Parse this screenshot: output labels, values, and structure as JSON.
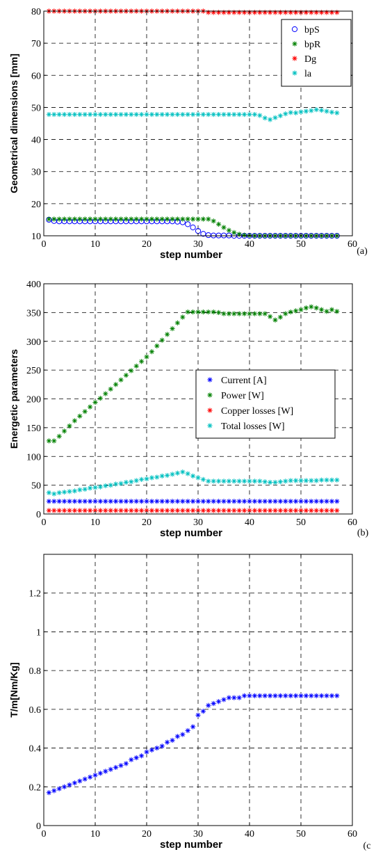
{
  "chart_data": [
    {
      "type": "scatter",
      "panel_label": "(a)",
      "xlabel": "step number",
      "ylabel": "Geometrical dimensions [mm]",
      "xlim": [
        0,
        60
      ],
      "ylim": [
        10,
        80
      ],
      "xticks": [
        0,
        10,
        20,
        30,
        40,
        50,
        60
      ],
      "yticks": [
        10,
        20,
        30,
        40,
        50,
        60,
        70,
        80
      ],
      "grid": true,
      "legend_position": "top-right",
      "series": [
        {
          "name": "bpS",
          "marker": "circle",
          "color": "#0000ff",
          "x": [
            1,
            2,
            3,
            4,
            5,
            6,
            7,
            8,
            9,
            10,
            11,
            12,
            13,
            14,
            15,
            16,
            17,
            18,
            19,
            20,
            21,
            22,
            23,
            24,
            25,
            26,
            27,
            28,
            29,
            30,
            31,
            32,
            33,
            34,
            35,
            36,
            37,
            38,
            39,
            40,
            41,
            42,
            43,
            44,
            45,
            46,
            47,
            48,
            49,
            50,
            51,
            52,
            53,
            54,
            55,
            56,
            57
          ],
          "y": [
            15,
            14.6,
            14.5,
            14.5,
            14.5,
            14.5,
            14.5,
            14.5,
            14.5,
            14.5,
            14.5,
            14.5,
            14.5,
            14.5,
            14.5,
            14.5,
            14.5,
            14.5,
            14.5,
            14.5,
            14.5,
            14.5,
            14.5,
            14.5,
            14.5,
            14.4,
            14.2,
            13.6,
            12.6,
            11.5,
            10.6,
            10.2,
            10.1,
            10.1,
            10.1,
            10.1,
            10,
            10,
            10,
            10,
            10,
            10,
            10,
            10,
            10,
            10,
            10,
            10,
            10,
            10,
            10,
            10,
            10,
            10,
            10,
            10,
            10
          ]
        },
        {
          "name": "bpR",
          "marker": "asterisk",
          "color": "#008000",
          "x": [
            1,
            2,
            3,
            4,
            5,
            6,
            7,
            8,
            9,
            10,
            11,
            12,
            13,
            14,
            15,
            16,
            17,
            18,
            19,
            20,
            21,
            22,
            23,
            24,
            25,
            26,
            27,
            28,
            29,
            30,
            31,
            32,
            33,
            34,
            35,
            36,
            37,
            38,
            39,
            40,
            41,
            42,
            43,
            44,
            45,
            46,
            47,
            48,
            49,
            50,
            51,
            52,
            53,
            54,
            55,
            56,
            57
          ],
          "y": [
            15.2,
            15.2,
            15.2,
            15.2,
            15.2,
            15.2,
            15.2,
            15.2,
            15.2,
            15.2,
            15.2,
            15.2,
            15.2,
            15.2,
            15.2,
            15.2,
            15.2,
            15.2,
            15.2,
            15.2,
            15.2,
            15.2,
            15.2,
            15.2,
            15.2,
            15.2,
            15.2,
            15.2,
            15.2,
            15.2,
            15.2,
            15.2,
            14.6,
            13.6,
            12.6,
            11.7,
            11,
            10.5,
            10.2,
            10.1,
            10,
            10,
            10,
            10,
            10,
            10,
            10,
            10,
            10,
            10,
            10,
            10,
            10,
            10,
            10,
            10,
            10
          ]
        },
        {
          "name": "Dg",
          "marker": "asterisk",
          "color": "#ff0000",
          "x": [
            1,
            2,
            3,
            4,
            5,
            6,
            7,
            8,
            9,
            10,
            11,
            12,
            13,
            14,
            15,
            16,
            17,
            18,
            19,
            20,
            21,
            22,
            23,
            24,
            25,
            26,
            27,
            28,
            29,
            30,
            31,
            32,
            33,
            34,
            35,
            36,
            37,
            38,
            39,
            40,
            41,
            42,
            43,
            44,
            45,
            46,
            47,
            48,
            49,
            50,
            51,
            52,
            53,
            54,
            55,
            56,
            57
          ],
          "y": [
            80,
            80,
            80,
            80,
            80,
            80,
            80,
            80,
            80,
            80,
            80,
            80,
            80,
            80,
            80,
            80,
            80,
            80,
            80,
            80,
            80,
            80,
            80,
            80,
            80,
            80,
            80,
            80,
            80,
            80,
            80,
            79.6,
            79.6,
            79.6,
            79.6,
            79.6,
            79.6,
            79.6,
            79.6,
            79.6,
            79.6,
            79.6,
            79.6,
            79.6,
            79.6,
            79.6,
            79.6,
            79.6,
            79.6,
            79.6,
            79.6,
            79.6,
            79.6,
            79.6,
            79.6,
            79.6,
            79.6
          ]
        },
        {
          "name": "la",
          "marker": "asterisk",
          "color": "#00c0c0",
          "x": [
            1,
            2,
            3,
            4,
            5,
            6,
            7,
            8,
            9,
            10,
            11,
            12,
            13,
            14,
            15,
            16,
            17,
            18,
            19,
            20,
            21,
            22,
            23,
            24,
            25,
            26,
            27,
            28,
            29,
            30,
            31,
            32,
            33,
            34,
            35,
            36,
            37,
            38,
            39,
            40,
            41,
            42,
            43,
            44,
            45,
            46,
            47,
            48,
            49,
            50,
            51,
            52,
            53,
            54,
            55,
            56,
            57
          ],
          "y": [
            47.8,
            47.8,
            47.8,
            47.8,
            47.8,
            47.8,
            47.8,
            47.8,
            47.8,
            47.8,
            47.8,
            47.8,
            47.8,
            47.8,
            47.8,
            47.8,
            47.8,
            47.8,
            47.8,
            47.8,
            47.8,
            47.8,
            47.8,
            47.8,
            47.8,
            47.8,
            47.8,
            47.8,
            47.8,
            47.8,
            47.8,
            47.8,
            47.8,
            47.8,
            47.8,
            47.8,
            47.8,
            47.8,
            47.8,
            47.8,
            47.8,
            47.5,
            46.7,
            46.2,
            46.8,
            47.4,
            48,
            48.4,
            48.3,
            48.6,
            48.8,
            49,
            49.3,
            49.1,
            48.8,
            48.5,
            48.3
          ]
        }
      ]
    },
    {
      "type": "scatter",
      "panel_label": "(b)",
      "xlabel": "step number",
      "ylabel": "Energetic parameters",
      "xlim": [
        0,
        60
      ],
      "ylim": [
        0,
        400
      ],
      "xticks": [
        0,
        10,
        20,
        30,
        40,
        50,
        60
      ],
      "yticks": [
        0,
        50,
        100,
        150,
        200,
        250,
        300,
        350,
        400
      ],
      "grid": true,
      "legend_position": "center-right",
      "series": [
        {
          "name": "Current [A]",
          "marker": "asterisk",
          "color": "#0000ff",
          "x": [
            1,
            2,
            3,
            4,
            5,
            6,
            7,
            8,
            9,
            10,
            11,
            12,
            13,
            14,
            15,
            16,
            17,
            18,
            19,
            20,
            21,
            22,
            23,
            24,
            25,
            26,
            27,
            28,
            29,
            30,
            31,
            32,
            33,
            34,
            35,
            36,
            37,
            38,
            39,
            40,
            41,
            42,
            43,
            44,
            45,
            46,
            47,
            48,
            49,
            50,
            51,
            52,
            53,
            54,
            55,
            56,
            57
          ],
          "y": [
            22,
            22,
            22,
            22,
            22,
            22,
            22,
            22,
            22,
            22,
            22,
            22,
            22,
            22,
            22,
            22,
            22,
            22,
            22,
            22,
            22,
            22,
            22,
            22,
            22,
            22,
            22,
            22,
            22,
            22,
            22,
            22,
            22,
            22,
            22,
            22,
            22,
            22,
            22,
            22,
            22,
            22,
            22,
            22,
            22,
            22,
            22,
            22,
            22,
            22,
            22,
            22,
            22,
            22,
            22,
            22,
            22
          ]
        },
        {
          "name": "Power [W]",
          "marker": "asterisk",
          "color": "#008000",
          "x": [
            1,
            2,
            3,
            4,
            5,
            6,
            7,
            8,
            9,
            10,
            11,
            12,
            13,
            14,
            15,
            16,
            17,
            18,
            19,
            20,
            21,
            22,
            23,
            24,
            25,
            26,
            27,
            28,
            29,
            30,
            31,
            32,
            33,
            34,
            35,
            36,
            37,
            38,
            39,
            40,
            41,
            42,
            43,
            44,
            45,
            46,
            47,
            48,
            49,
            50,
            51,
            52,
            53,
            54,
            55,
            56,
            57
          ],
          "y": [
            127,
            127,
            135,
            144,
            153,
            162,
            170,
            178,
            186,
            194,
            201,
            209,
            217,
            225,
            233,
            241,
            249,
            257,
            265,
            273,
            282,
            292,
            302,
            312,
            322,
            332,
            342,
            351,
            351,
            351,
            351,
            351,
            351,
            350,
            348,
            348,
            348,
            348,
            348,
            348,
            348,
            348,
            348,
            343,
            337,
            342,
            348,
            351,
            353,
            355,
            358,
            360,
            358,
            355,
            352,
            355,
            352
          ]
        },
        {
          "name": "Copper losses [W]",
          "marker": "asterisk",
          "color": "#ff0000",
          "x": [
            1,
            2,
            3,
            4,
            5,
            6,
            7,
            8,
            9,
            10,
            11,
            12,
            13,
            14,
            15,
            16,
            17,
            18,
            19,
            20,
            21,
            22,
            23,
            24,
            25,
            26,
            27,
            28,
            29,
            30,
            31,
            32,
            33,
            34,
            35,
            36,
            37,
            38,
            39,
            40,
            41,
            42,
            43,
            44,
            45,
            46,
            47,
            48,
            49,
            50,
            51,
            52,
            53,
            54,
            55,
            56,
            57
          ],
          "y": [
            6,
            6,
            6,
            6,
            6,
            6,
            6,
            6,
            6,
            6,
            6,
            6,
            6,
            6,
            6,
            6,
            6,
            6,
            6,
            6,
            6,
            6,
            6,
            6,
            6,
            6,
            6,
            6,
            6,
            6,
            6,
            6,
            6,
            6,
            6,
            6,
            6,
            6,
            6,
            6,
            6,
            6,
            6,
            6,
            6,
            6,
            6,
            6,
            6,
            6,
            6,
            6,
            6,
            6,
            6,
            6,
            6
          ]
        },
        {
          "name": "Total losses [W]",
          "marker": "asterisk",
          "color": "#00c0c0",
          "x": [
            1,
            2,
            3,
            4,
            5,
            6,
            7,
            8,
            9,
            10,
            11,
            12,
            13,
            14,
            15,
            16,
            17,
            18,
            19,
            20,
            21,
            22,
            23,
            24,
            25,
            26,
            27,
            28,
            29,
            30,
            31,
            32,
            33,
            34,
            35,
            36,
            37,
            38,
            39,
            40,
            41,
            42,
            43,
            44,
            45,
            46,
            47,
            48,
            49,
            50,
            51,
            52,
            53,
            54,
            55,
            56,
            57
          ],
          "y": [
            37,
            35,
            37,
            38,
            39,
            40,
            42,
            43,
            45,
            46,
            47,
            49,
            50,
            52,
            53,
            55,
            56,
            58,
            60,
            61,
            63,
            64,
            66,
            67,
            69,
            71,
            73,
            70,
            66,
            63,
            60,
            57,
            57,
            57,
            57,
            57,
            57,
            57,
            57,
            57,
            57,
            57,
            56,
            55,
            55,
            56,
            57,
            58,
            58,
            58,
            58,
            58,
            58,
            59,
            59,
            59,
            59
          ]
        }
      ]
    },
    {
      "type": "scatter",
      "panel_label": "(c",
      "xlabel": "step number",
      "ylabel": "T/m[Nm/Kg]",
      "xlim": [
        0,
        60
      ],
      "ylim": [
        0,
        1.4
      ],
      "xticks": [
        0,
        10,
        20,
        30,
        40,
        50,
        60
      ],
      "yticks": [
        0,
        0.2,
        0.4,
        0.6,
        0.8,
        1,
        1.2
      ],
      "grid": true,
      "series": [
        {
          "name": "",
          "marker": "asterisk",
          "color": "#0000ff",
          "x": [
            1,
            2,
            3,
            4,
            5,
            6,
            7,
            8,
            9,
            10,
            11,
            12,
            13,
            14,
            15,
            16,
            17,
            18,
            19,
            20,
            21,
            22,
            23,
            24,
            25,
            26,
            27,
            28,
            29,
            30,
            31,
            32,
            33,
            34,
            35,
            36,
            37,
            38,
            39,
            40,
            41,
            42,
            43,
            44,
            45,
            46,
            47,
            48,
            49,
            50,
            51,
            52,
            53,
            54,
            55,
            56,
            57
          ],
          "y": [
            0.17,
            0.18,
            0.19,
            0.2,
            0.21,
            0.22,
            0.23,
            0.24,
            0.25,
            0.26,
            0.27,
            0.28,
            0.29,
            0.3,
            0.31,
            0.32,
            0.34,
            0.35,
            0.36,
            0.38,
            0.39,
            0.4,
            0.41,
            0.43,
            0.44,
            0.46,
            0.47,
            0.49,
            0.51,
            0.57,
            0.59,
            0.62,
            0.63,
            0.64,
            0.65,
            0.66,
            0.66,
            0.66,
            0.67,
            0.67,
            0.67,
            0.67,
            0.67,
            0.67,
            0.67,
            0.67,
            0.67,
            0.67,
            0.67,
            0.67,
            0.67,
            0.67,
            0.67,
            0.67,
            0.67,
            0.67,
            0.67
          ]
        }
      ]
    }
  ]
}
